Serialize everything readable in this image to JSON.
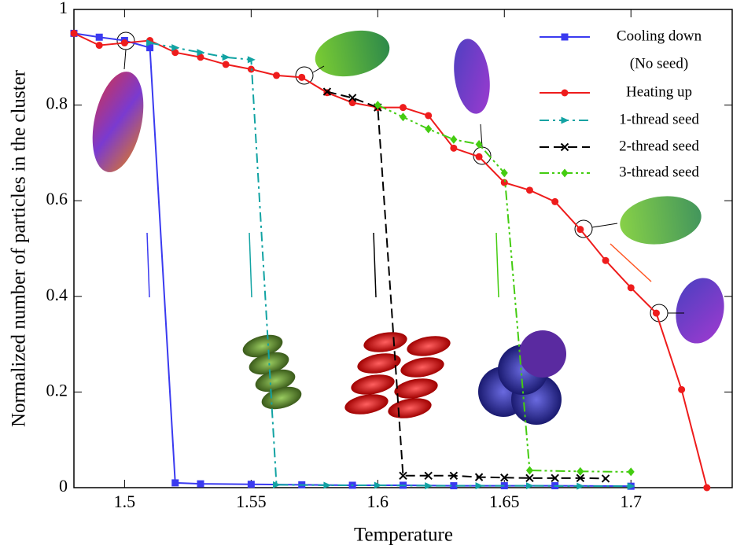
{
  "chart_data": {
    "type": "line",
    "xlabel": "Temperature",
    "ylabel": "Normalized number of particles in the cluster",
    "xlim": [
      1.48,
      1.74
    ],
    "ylim": [
      0,
      1
    ],
    "xticks": [
      1.5,
      1.55,
      1.6,
      1.65,
      1.7
    ],
    "yticks": [
      0,
      0.2,
      0.4,
      0.6,
      0.8,
      1
    ],
    "legend": "upper right",
    "legend_note": "(No seed)",
    "series": [
      {
        "name": "Cooling down",
        "color": "#3a3af0",
        "marker": "square",
        "linestyle": "solid",
        "x": [
          1.48,
          1.49,
          1.5,
          1.51,
          1.52,
          1.53,
          1.55,
          1.57,
          1.59,
          1.61,
          1.63,
          1.65,
          1.67,
          1.7
        ],
        "values": [
          0.95,
          0.942,
          0.935,
          0.92,
          0.01,
          0.008,
          0.007,
          0.006,
          0.005,
          0.005,
          0.004,
          0.004,
          0.004,
          0.003
        ]
      },
      {
        "name": "Heating up",
        "color": "#ee1c1c",
        "marker": "circle",
        "linestyle": "solid",
        "x": [
          1.48,
          1.49,
          1.5,
          1.51,
          1.52,
          1.53,
          1.54,
          1.55,
          1.56,
          1.57,
          1.58,
          1.59,
          1.6,
          1.61,
          1.62,
          1.63,
          1.64,
          1.65,
          1.66,
          1.67,
          1.68,
          1.69,
          1.7,
          1.71,
          1.72,
          1.73
        ],
        "values": [
          0.95,
          0.925,
          0.93,
          0.935,
          0.91,
          0.9,
          0.885,
          0.875,
          0.862,
          0.858,
          0.826,
          0.805,
          0.795,
          0.795,
          0.778,
          0.71,
          0.692,
          0.638,
          0.622,
          0.598,
          0.54,
          0.475,
          0.418,
          0.365,
          0.205,
          0
        ]
      },
      {
        "name": "1-thread seed",
        "color": "#12a3a3",
        "marker": "triangle",
        "linestyle": "dashdot",
        "x": [
          1.51,
          1.52,
          1.53,
          1.54,
          1.55,
          1.56,
          1.58,
          1.6,
          1.62,
          1.64,
          1.66,
          1.68,
          1.7
        ],
        "values": [
          0.93,
          0.92,
          0.91,
          0.9,
          0.895,
          0.006,
          0.005,
          0.005,
          0.004,
          0.004,
          0.004,
          0.003,
          0.003
        ]
      },
      {
        "name": "2-thread seed",
        "color": "#000000",
        "marker": "x",
        "linestyle": "dashed",
        "x": [
          1.58,
          1.59,
          1.6,
          1.61,
          1.62,
          1.63,
          1.64,
          1.65,
          1.66,
          1.67,
          1.68,
          1.69
        ],
        "values": [
          0.828,
          0.815,
          0.795,
          0.025,
          0.025,
          0.025,
          0.022,
          0.021,
          0.02,
          0.02,
          0.02,
          0.019
        ]
      },
      {
        "name": "3-thread seed",
        "color": "#44cc11",
        "marker": "diamond",
        "linestyle": "dashdotdot",
        "x": [
          1.6,
          1.61,
          1.62,
          1.63,
          1.64,
          1.65,
          1.66,
          1.68,
          1.7
        ],
        "values": [
          0.8,
          0.775,
          0.75,
          0.728,
          0.718,
          0.658,
          0.036,
          0.034,
          0.033
        ]
      }
    ]
  }
}
